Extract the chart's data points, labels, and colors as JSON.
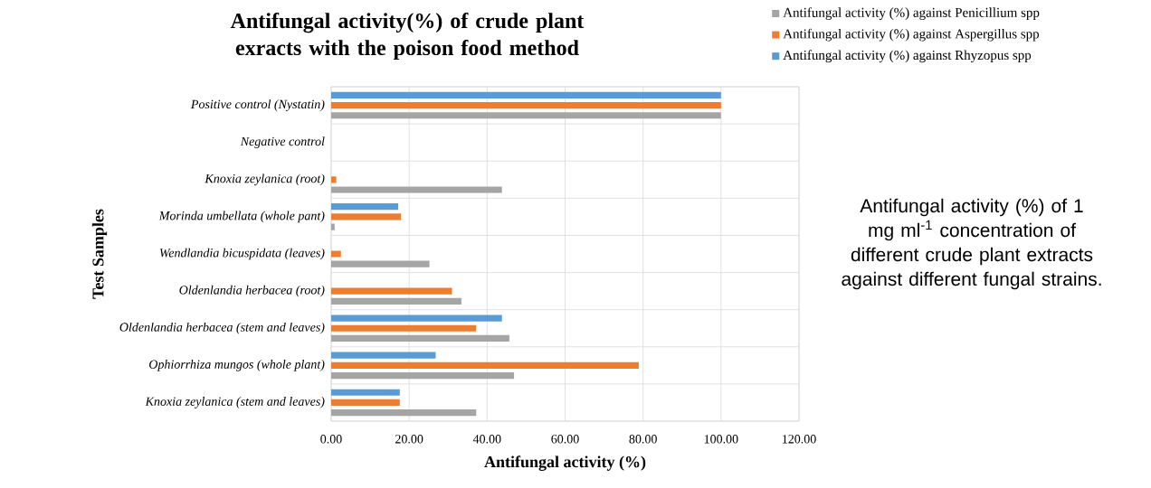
{
  "chart_data": {
    "type": "bar",
    "orientation": "horizontal",
    "title": "Antifungal activity(%) of crude plant exracts with the poison food method",
    "xlabel": "Antifungal activity (%)",
    "ylabel": "Test Samples",
    "categories": [
      "Positive control (Nystatin)",
      "Negative control",
      "Knoxia zeylanica (root)",
      "Morinda umbellata (whole pant)",
      "Wendlandia bicuspidata  (leaves)",
      "Oldenlandia herbacea (root)",
      "Oldenlandia herbacea (stem and leaves)",
      "Ophiorrhiza mungos (whole plant)",
      "Knoxia zeylanica (stem and leaves)"
    ],
    "series": [
      {
        "name": "Antifungal activity (%) against Penicillium spp",
        "color": "#a5a5a5",
        "values": [
          100,
          0,
          43.8,
          0.9,
          25.2,
          33.4,
          45.7,
          46.9,
          37.2
        ]
      },
      {
        "name": "Antifungal activity (%) against Aspergillus spp",
        "color": "#ed7d31",
        "values": [
          100,
          0,
          1.3,
          17.9,
          2.5,
          31.0,
          37.2,
          78.9,
          17.6
        ]
      },
      {
        "name": "Antifungal activity (%) against Rhyzopus spp",
        "color": "#5b9bd5",
        "values": [
          100,
          0,
          null,
          17.2,
          null,
          null,
          43.8,
          26.8,
          17.6
        ]
      }
    ],
    "xlim": [
      0,
      120
    ],
    "xticks": [
      {
        "value": 0,
        "label": "0.00"
      },
      {
        "value": 20,
        "label": "20.00"
      },
      {
        "value": 40,
        "label": "40.00"
      },
      {
        "value": 60,
        "label": "60.00"
      },
      {
        "value": 80,
        "label": "80.00"
      },
      {
        "value": 100,
        "label": "100.00"
      },
      {
        "value": 120,
        "label": "120.00"
      }
    ],
    "grid": true,
    "legend": "top right",
    "annotations": [
      "Antifungal activity (%) of 1 mg ml$^{-1}$ concentration of different crude plant extracts against different fungal strains."
    ]
  }
}
